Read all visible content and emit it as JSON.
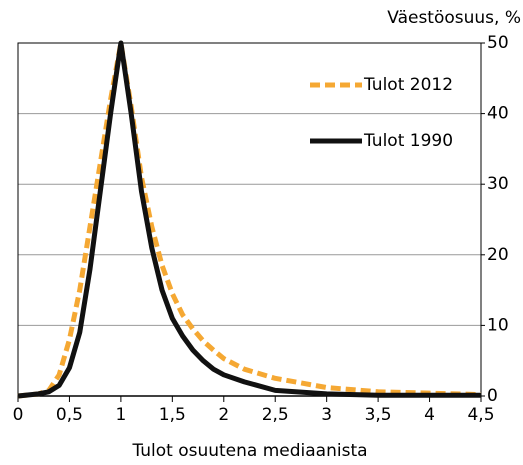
{
  "chart_data": {
    "type": "line",
    "y_axis_label": "Väestöosuus, %",
    "x_axis_label": "Tulot osuutena mediaanista",
    "x": [
      0,
      0.2,
      0.3,
      0.4,
      0.5,
      0.6,
      0.7,
      0.8,
      0.9,
      1.0,
      1.1,
      1.2,
      1.3,
      1.4,
      1.5,
      1.6,
      1.7,
      1.8,
      1.9,
      2.0,
      2.2,
      2.5,
      3.0,
      3.5,
      4.0,
      4.5
    ],
    "series": [
      {
        "name": "Tulot 2012",
        "color": "#f5a833",
        "dashed": true,
        "values": [
          0,
          0.3,
          0.8,
          3,
          8,
          15,
          24,
          33,
          42,
          50,
          41,
          31,
          24,
          18.5,
          14.5,
          11.5,
          9.5,
          7.8,
          6.5,
          5.3,
          3.8,
          2.5,
          1.2,
          0.6,
          0.4,
          0.2
        ]
      },
      {
        "name": "Tulot 1990",
        "color": "#111111",
        "dashed": false,
        "values": [
          0,
          0.3,
          0.6,
          1.5,
          4,
          9,
          18,
          29,
          40,
          50,
          40,
          29,
          21,
          15,
          11,
          8.5,
          6.5,
          5,
          3.8,
          3,
          2,
          0.8,
          0.3,
          0.1,
          0.1,
          0.1
        ]
      }
    ],
    "xlim": [
      0,
      4.5
    ],
    "xticks": [
      0,
      {
        "value": 0.5,
        "label": "0,5"
      },
      1,
      {
        "value": 1.5,
        "label": "1,5"
      },
      2,
      {
        "value": 2.5,
        "label": "2,5"
      },
      3,
      {
        "value": 3.5,
        "label": "3,5"
      },
      4,
      {
        "value": 4.5,
        "label": "4,5"
      }
    ],
    "ylim": [
      0,
      50
    ],
    "yticks": [
      0,
      10,
      20,
      30,
      40,
      50
    ],
    "grid": true
  }
}
